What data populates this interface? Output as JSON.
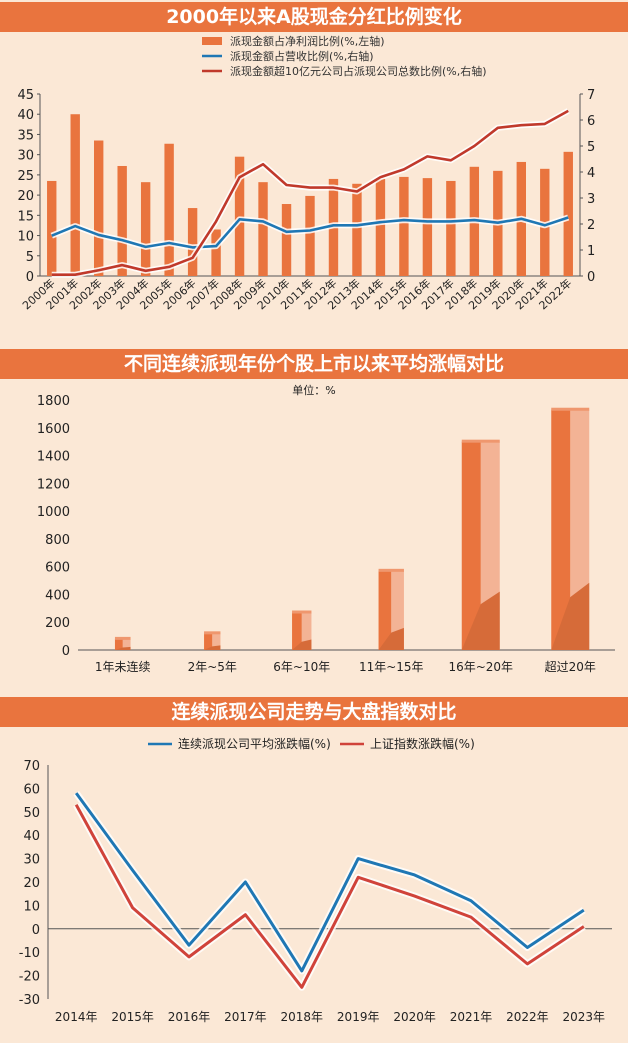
{
  "chart_data": [
    {
      "type": "bar+line",
      "title": "2000年以来A股现金分红比例变化",
      "categories": [
        "2000年",
        "2001年",
        "2002年",
        "2003年",
        "2004年",
        "2005年",
        "2006年",
        "2007年",
        "2008年",
        "2009年",
        "2010年",
        "2011年",
        "2012年",
        "2013年",
        "2014年",
        "2015年",
        "2016年",
        "2017年",
        "2018年",
        "2019年",
        "2020年",
        "2021年",
        "2022年"
      ],
      "left_axis": {
        "min": 0,
        "max": 45,
        "ticks": [
          "0",
          "5",
          "10",
          "15",
          "20",
          "25",
          "30",
          "35",
          "40",
          "45"
        ]
      },
      "right_axis": {
        "min": 0,
        "max": 7,
        "ticks": [
          "0",
          "1",
          "2",
          "3",
          "4",
          "5",
          "6",
          "7"
        ]
      },
      "grid": false,
      "legend_position": "top-center",
      "series": [
        {
          "name": "派现金额占净利润比例(%,左轴)",
          "type": "bar",
          "axis": "left",
          "color": "#e9743e",
          "values": [
            23.5,
            40.0,
            33.5,
            27.2,
            23.2,
            32.7,
            16.8,
            11.5,
            29.5,
            23.2,
            17.8,
            19.8,
            24.0,
            22.8,
            24.0,
            24.5,
            24.2,
            23.5,
            27.0,
            26.0,
            28.2,
            26.5,
            30.7
          ]
        },
        {
          "name": "派现金额占营收比例(%,右轴)",
          "type": "line",
          "axis": "right",
          "color": "#1f77b4",
          "values": [
            1.55,
            1.92,
            1.58,
            1.38,
            1.12,
            1.27,
            1.1,
            1.15,
            2.18,
            2.1,
            1.7,
            1.75,
            1.95,
            1.95,
            2.07,
            2.15,
            2.1,
            2.1,
            2.15,
            2.05,
            2.2,
            1.95,
            2.25
          ]
        },
        {
          "name": "派现金额超10亿元公司占派现公司总数比例(%,右轴)",
          "type": "line",
          "axis": "right",
          "color": "#c0392b",
          "values": [
            0.05,
            0.05,
            0.22,
            0.42,
            0.2,
            0.35,
            0.7,
            2.1,
            3.8,
            4.3,
            3.5,
            3.4,
            3.4,
            3.25,
            3.8,
            4.1,
            4.6,
            4.45,
            5.0,
            5.7,
            5.8,
            5.85,
            6.35
          ]
        }
      ]
    },
    {
      "type": "bar",
      "title": "不同连续派现年份个股上市以来平均涨幅对比",
      "unit_label": "单位：%",
      "categories": [
        "1年未连续",
        "2年~5年",
        "6年~10年",
        "11年~15年",
        "16年~20年",
        "超过20年"
      ],
      "values": [
        80,
        120,
        270,
        570,
        1500,
        1730
      ],
      "y_axis": {
        "min": 0,
        "max": 1800,
        "ticks": [
          "0",
          "200",
          "400",
          "600",
          "800",
          "1000",
          "1200",
          "1400",
          "1600",
          "1800"
        ]
      },
      "grid": false,
      "color": "#e9743e"
    },
    {
      "type": "line",
      "title": "连续派现公司走势与大盘指数对比",
      "categories": [
        "2014年",
        "2015年",
        "2016年",
        "2017年",
        "2018年",
        "2019年",
        "2020年",
        "2021年",
        "2022年",
        "2023年"
      ],
      "y_axis": {
        "min": -30,
        "max": 70,
        "ticks": [
          "-30",
          "-20",
          "-10",
          "0",
          "10",
          "20",
          "30",
          "40",
          "50",
          "60",
          "70"
        ]
      },
      "grid": false,
      "legend_position": "top-center",
      "series": [
        {
          "name": "连续派现公司平均涨跌幅(%)",
          "color": "#1f77b4",
          "values": [
            58,
            25,
            -7,
            20,
            -18,
            30,
            23,
            12,
            -8,
            8
          ]
        },
        {
          "name": "上证指数涨跌幅(%)",
          "color": "#d0433a",
          "values": [
            53,
            9,
            -12,
            6,
            -25,
            22,
            14,
            5,
            -15,
            1
          ]
        }
      ]
    }
  ]
}
